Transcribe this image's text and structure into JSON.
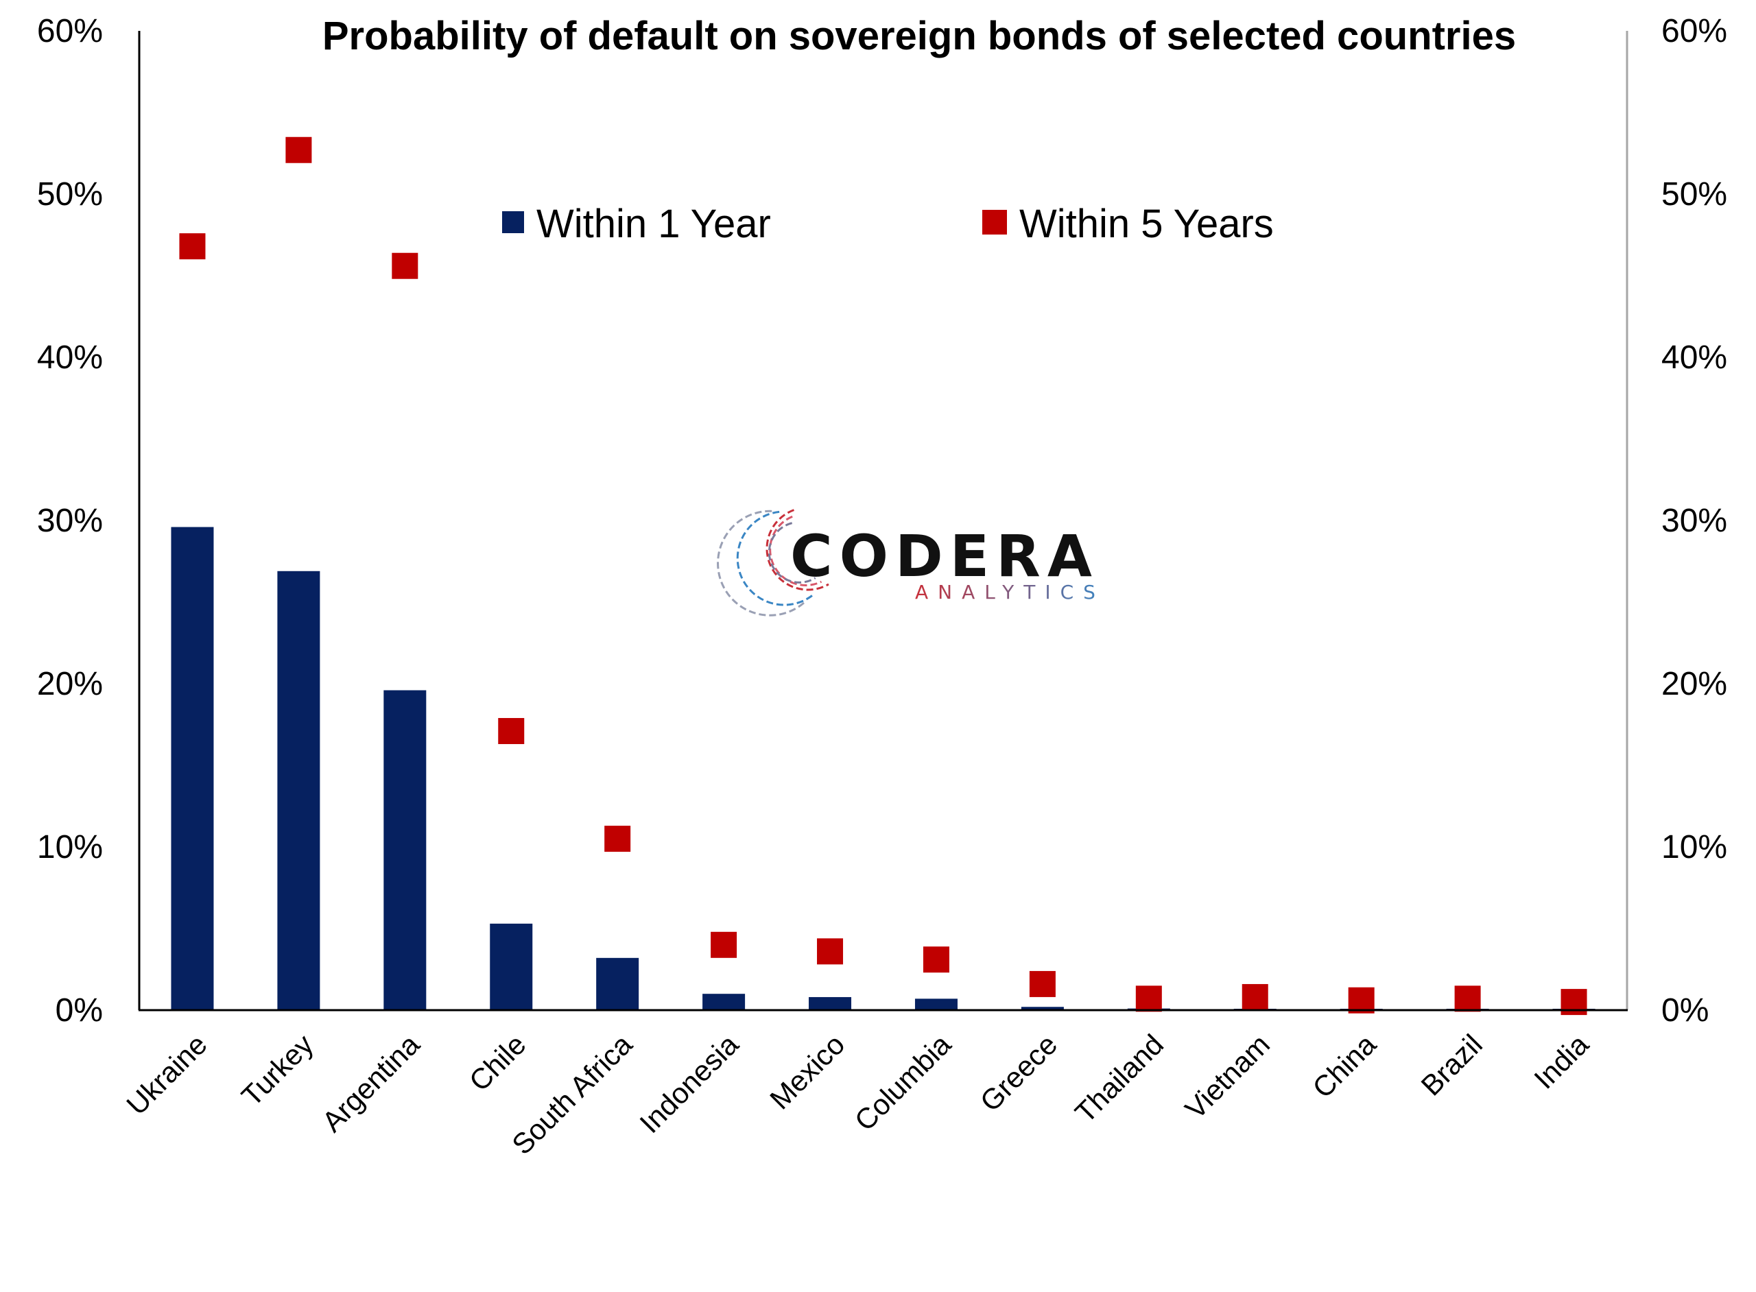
{
  "chart_data": {
    "type": "bar",
    "title": "Probability of default on sovereign bonds of selected countries",
    "categories": [
      "Ukraine",
      "Turkey",
      "Argentina",
      "Chile",
      "South Africa",
      "Indonesia",
      "Mexico",
      "Columbia",
      "Greece",
      "Thailand",
      "Vietnam",
      "China",
      "Brazil",
      "India"
    ],
    "series": [
      {
        "name": "Within 1 Year",
        "mark": "bar",
        "color": "#062160",
        "values": [
          29.6,
          26.9,
          19.6,
          5.3,
          3.2,
          1.0,
          0.8,
          0.7,
          0.2,
          0.1,
          0.05,
          0.05,
          0.05,
          0.05
        ]
      },
      {
        "name": "Within 5 Years",
        "mark": "square",
        "color": "#C00000",
        "values": [
          46.8,
          52.7,
          45.6,
          17.1,
          10.5,
          4.0,
          3.6,
          3.1,
          1.6,
          0.7,
          0.8,
          0.6,
          0.7,
          0.5
        ]
      }
    ],
    "yticks": [
      "0%",
      "10%",
      "20%",
      "30%",
      "40%",
      "50%",
      "60%"
    ],
    "ylim": [
      0,
      60
    ],
    "y_unit": "%",
    "secondary_axis": true,
    "grid": false,
    "legend_position": "top-center",
    "xlabel": "",
    "ylabel": ""
  },
  "watermark": {
    "logo_text": "CODERA",
    "logo_subtext": "ANALYTICS"
  }
}
